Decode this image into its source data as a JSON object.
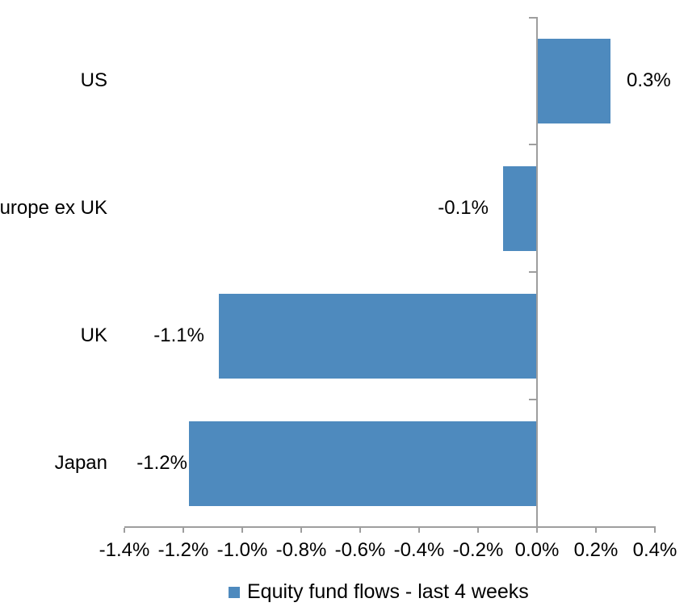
{
  "chart_data": {
    "type": "bar",
    "orientation": "horizontal",
    "title": "",
    "categories": [
      "US",
      "Europe ex UK",
      "UK",
      "Japan"
    ],
    "values": [
      0.3,
      -0.1,
      -1.1,
      -1.2
    ],
    "value_labels": [
      "0.3%",
      "-0.1%",
      "-1.1%",
      "-1.2%"
    ],
    "plot_values": [
      0.25,
      -0.115,
      -1.08,
      -1.18
    ],
    "x_ticks": [
      -1.4,
      -1.2,
      -1.0,
      -0.8,
      -0.6,
      -0.4,
      -0.2,
      0.0,
      0.2,
      0.4
    ],
    "x_tick_labels": [
      "-1.4%",
      "-1.2%",
      "-1.0%",
      "-0.8%",
      "-0.6%",
      "-0.4%",
      "-0.2%",
      "0.0%",
      "0.2%",
      "0.4%"
    ],
    "xlim": [
      -1.4,
      0.4
    ],
    "grid": false,
    "legend": {
      "label": "Equity fund flows - last 4 weeks",
      "position": "bottom"
    },
    "colors": {
      "bar": "#4e8abe",
      "axis": "#9e9e9e",
      "text": "#000000",
      "background": "#ffffff"
    }
  }
}
